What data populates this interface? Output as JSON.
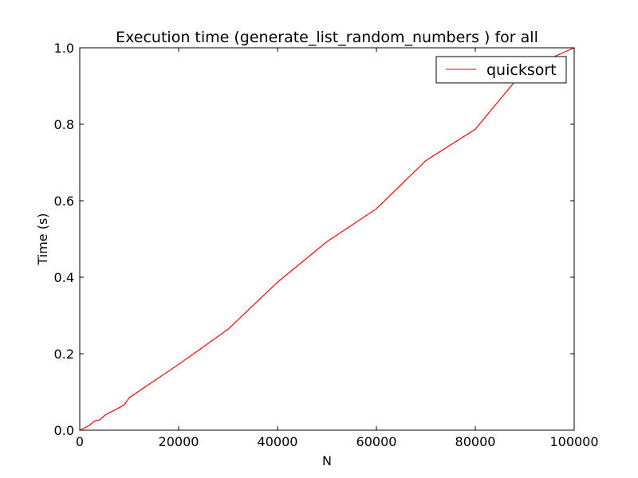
{
  "chart_data": {
    "type": "line",
    "title": "Execution time (generate_list_random_numbers ) for all",
    "xlabel": "N",
    "ylabel": "Time (s)",
    "xlim": [
      0,
      100000
    ],
    "ylim": [
      0.0,
      1.0
    ],
    "x_ticks": [
      "0",
      "20000",
      "40000",
      "60000",
      "80000",
      "100000"
    ],
    "y_ticks": [
      "0.0",
      "0.2",
      "0.4",
      "0.6",
      "0.8",
      "1.0"
    ],
    "grid": false,
    "legend_position": "top-right",
    "series": [
      {
        "name": "quicksort",
        "color": "#ff0000",
        "x": [
          0,
          1000,
          2000,
          3000,
          4000,
          5000,
          6000,
          7000,
          8000,
          9000,
          10000,
          20000,
          30000,
          40000,
          50000,
          60000,
          70000,
          80000,
          90000,
          100000
        ],
        "y": [
          0.0,
          0.006,
          0.013,
          0.024,
          0.027,
          0.038,
          0.046,
          0.052,
          0.059,
          0.066,
          0.085,
          0.172,
          0.264,
          0.387,
          0.493,
          0.579,
          0.705,
          0.787,
          0.943,
          1.0
        ]
      }
    ]
  }
}
